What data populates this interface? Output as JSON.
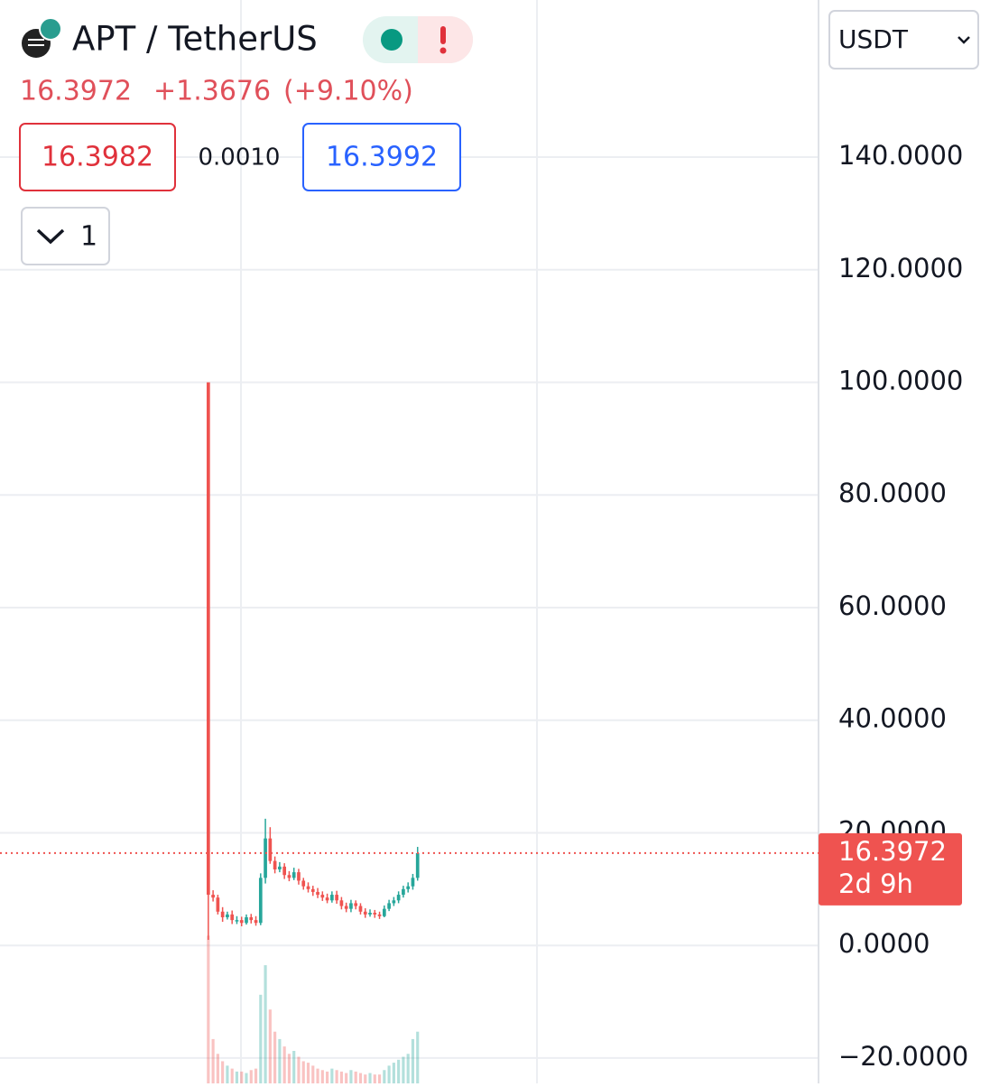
{
  "header": {
    "symbol": "APT / TetherUS",
    "last": "16.3972",
    "change": "+1.3676",
    "change_pct": "(+9.10%)",
    "bid": "16.3982",
    "spread": "0.0010",
    "ask": "16.3992",
    "interval": "1",
    "currency": "USDT",
    "price_tag": "16.3972",
    "countdown": "2d 9h"
  },
  "chart_data": {
    "type": "candlestick",
    "up_color": "#26a69a",
    "down_color": "#ef5350",
    "open": [
      100,
      9,
      8.5,
      6,
      5,
      5.5,
      4.5,
      4.5,
      4,
      5,
      4.5,
      4,
      12,
      19,
      15,
      13.5,
      14,
      12.5,
      12,
      13,
      11.5,
      10.5,
      10,
      9.5,
      9,
      8.5,
      8,
      9,
      8,
      7,
      6.5,
      7.5,
      7,
      6,
      5.5,
      5.8,
      5.5,
      5.2,
      6.5,
      7.5,
      8,
      9,
      10,
      10.5,
      12
    ],
    "high": [
      100,
      9.8,
      9,
      6.8,
      6,
      6.2,
      5.2,
      5.1,
      5.5,
      5.6,
      5.2,
      12.8,
      22.5,
      21,
      15.8,
      14.8,
      14.6,
      13.2,
      13.8,
      13.6,
      12,
      11.2,
      10.6,
      10.2,
      9.6,
      9.2,
      9.6,
      9.7,
      8.6,
      7.6,
      8.1,
      8,
      7.5,
      6.6,
      6.4,
      6.3,
      6,
      7.1,
      8.1,
      8.6,
      9.6,
      10.6,
      11.2,
      12.7,
      17.5
    ],
    "low": [
      1,
      7.8,
      5.5,
      4.2,
      4.6,
      3.8,
      3.8,
      3.4,
      3.7,
      3.9,
      3.5,
      3.6,
      11,
      14.5,
      12.8,
      13,
      11.8,
      11.4,
      11.6,
      10.8,
      9.9,
      9.4,
      8.8,
      8.4,
      7.9,
      7.5,
      7.6,
      7.4,
      6.4,
      5.9,
      5.9,
      6.4,
      5.5,
      4.9,
      5.1,
      4.9,
      4.7,
      5,
      6.1,
      7,
      7.5,
      8.5,
      9.4,
      9.9,
      11.5
    ],
    "close": [
      9,
      8.5,
      6,
      5,
      5.5,
      4.5,
      4.5,
      4,
      5,
      4.5,
      4,
      12,
      19,
      15,
      13.5,
      14,
      12.5,
      12,
      13,
      11.5,
      10.5,
      10,
      9.5,
      9,
      8.5,
      8,
      9,
      8,
      7,
      6.5,
      7.5,
      7,
      6,
      5.5,
      5.8,
      5.5,
      5.2,
      6.5,
      7.5,
      8,
      9,
      10,
      10.5,
      12,
      16.3972
    ],
    "volume": [
      100,
      30,
      20,
      15,
      12,
      10,
      8,
      8,
      7,
      9,
      10,
      60,
      80,
      50,
      35,
      30,
      25,
      20,
      22,
      18,
      15,
      14,
      12,
      10,
      9,
      8,
      10,
      9,
      8,
      7,
      9,
      8,
      7,
      6,
      7,
      6,
      6,
      9,
      12,
      14,
      16,
      18,
      20,
      30,
      35
    ],
    "xlim": [
      -43.8,
      128.3
    ],
    "ylim": [
      -24.5,
      167.9
    ],
    "vlim": [
      0,
      110
    ],
    "yticks": [
      {
        "value": 140,
        "label": "140.0000"
      },
      {
        "value": 120,
        "label": "120.0000"
      },
      {
        "value": 100,
        "label": "100.0000"
      },
      {
        "value": 80,
        "label": "80.0000"
      },
      {
        "value": 60,
        "label": "60.0000"
      },
      {
        "value": 40,
        "label": "40.0000"
      },
      {
        "value": 20,
        "label": "20.0000"
      },
      {
        "value": 0,
        "label": "0.0000"
      },
      {
        "value": -20,
        "label": "−20.0000"
      }
    ],
    "grid": true
  }
}
